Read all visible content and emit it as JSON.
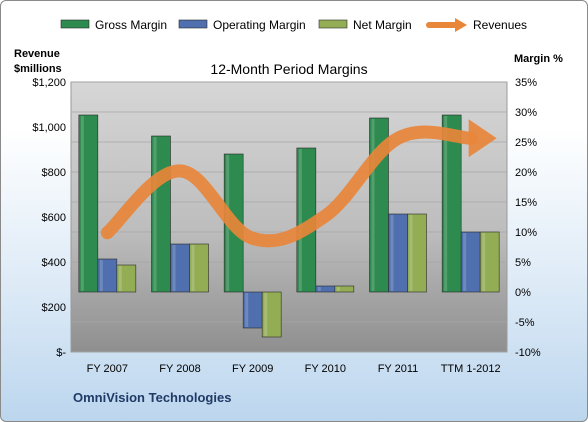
{
  "chart_data": {
    "type": "bar",
    "title": "12-Month Period Margins",
    "categories": [
      "FY 2007",
      "FY 2008",
      "FY 2009",
      "FY 2010",
      "FY 2011",
      "TTM 1-2012"
    ],
    "series": [
      {
        "name": "Gross Margin",
        "type": "bar",
        "axis": "right",
        "color": "#2e8b4f",
        "values": [
          29.5,
          26,
          23,
          24,
          29,
          29.5
        ]
      },
      {
        "name": "Operating Margin",
        "type": "bar",
        "axis": "right",
        "color": "#4f6fae",
        "values": [
          5.5,
          8,
          -6,
          1,
          13,
          10
        ]
      },
      {
        "name": "Net Margin",
        "type": "bar",
        "axis": "right",
        "color": "#93ad55",
        "values": [
          4.5,
          8,
          -7.5,
          1,
          13,
          10
        ]
      },
      {
        "name": "Revenues",
        "type": "line",
        "axis": "left",
        "color": "#e8863a",
        "values": [
          530,
          805,
          505,
          605,
          950,
          950
        ]
      }
    ],
    "y_left": {
      "label_line1": "Revenue",
      "label_line2": "$millions",
      "range": [
        0,
        1200
      ],
      "ticks": [
        "$-",
        "$200",
        "$400",
        "$600",
        "$800",
        "$1,000",
        "$1,200"
      ]
    },
    "y_right": {
      "label": "Margin %",
      "range": [
        -10,
        35
      ],
      "ticks": [
        "-10%",
        "-5%",
        "0%",
        "5%",
        "10%",
        "15%",
        "20%",
        "25%",
        "30%",
        "35%"
      ]
    },
    "legend_position": "top",
    "grid": true,
    "footer": "OmniVision Technologies"
  }
}
